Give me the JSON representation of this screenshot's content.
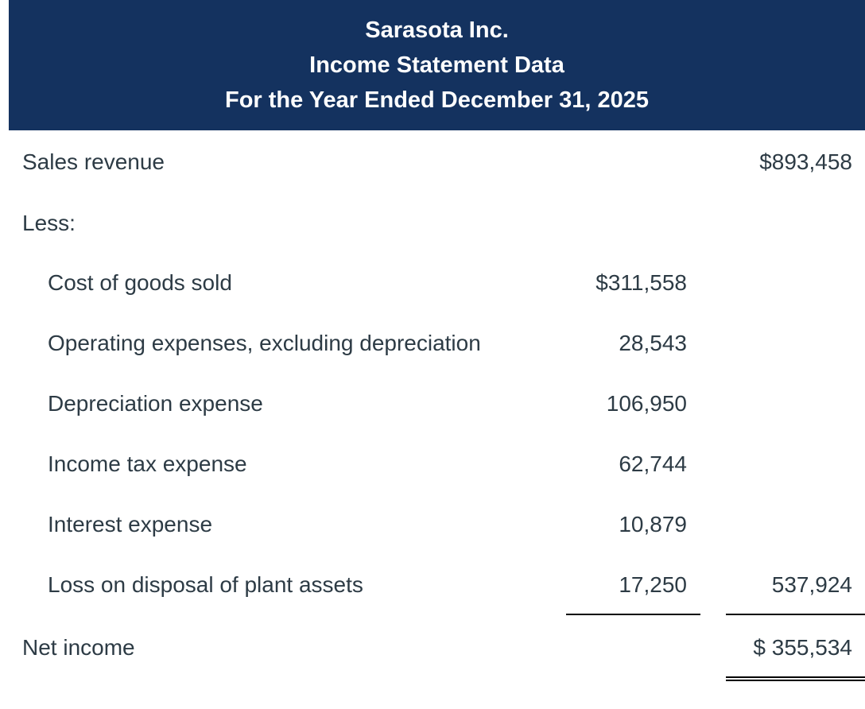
{
  "header": {
    "company": "Sarasota Inc.",
    "title": "Income Statement Data",
    "period": "For the Year Ended December 31, 2025",
    "background_color": "#14325f"
  },
  "rows": [
    {
      "label": "Sales revenue",
      "col1": "",
      "col2": "$893,458"
    },
    {
      "label": "Less:",
      "col1": "",
      "col2": ""
    },
    {
      "label": "Cost of goods sold",
      "col1": "$311,558",
      "col2": ""
    },
    {
      "label": "Operating expenses, excluding depreciation",
      "col1": "28,543",
      "col2": ""
    },
    {
      "label": "Depreciation expense",
      "col1": "106,950",
      "col2": ""
    },
    {
      "label": "Income tax expense",
      "col1": "62,744",
      "col2": ""
    },
    {
      "label": "Interest expense",
      "col1": "10,879",
      "col2": ""
    },
    {
      "label": "Loss on disposal of plant assets",
      "col1": "17,250",
      "col2": "537,924"
    },
    {
      "label": "Net income",
      "col1": "",
      "col2": "$ 355,534"
    }
  ]
}
